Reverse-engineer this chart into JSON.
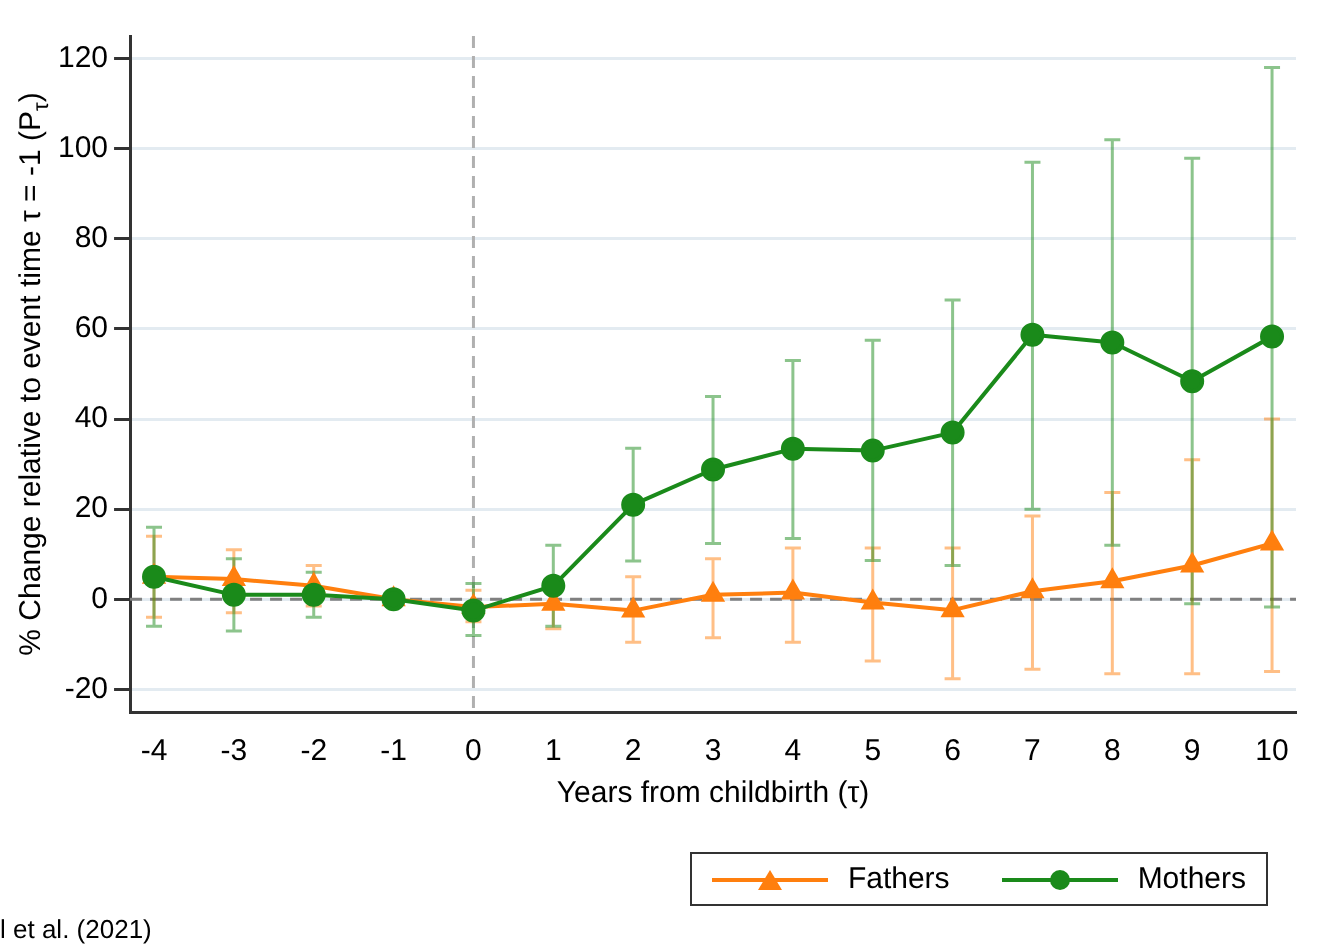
{
  "chart_data": {
    "type": "line",
    "xlabel": "Years from childbirth (τ)",
    "ylabel": "% Change relative to event time τ = -1 (P$_{τ}$)",
    "x": [
      -4,
      -3,
      -2,
      -1,
      0,
      1,
      2,
      3,
      4,
      5,
      6,
      7,
      8,
      9,
      10
    ],
    "xlim": [
      -4.3,
      10.3
    ],
    "xticks": [
      -4,
      -3,
      -2,
      -1,
      0,
      1,
      2,
      3,
      4,
      5,
      6,
      7,
      8,
      9,
      10
    ],
    "ylim": [
      -25,
      125
    ],
    "yticks": [
      -20,
      0,
      20,
      40,
      60,
      80,
      100,
      120
    ],
    "series": [
      {
        "name": "Fathers",
        "color": "#ff7f0e",
        "marker": "triangle",
        "values": [
          5,
          4.5,
          3,
          0,
          -1.7,
          -1,
          -2.5,
          1,
          1.5,
          -0.7,
          -2.4,
          1.8,
          4,
          7.5,
          12.4
        ],
        "errors": [
          [
            -4,
            14
          ],
          [
            -3,
            11
          ],
          [
            -1.5,
            7.5
          ],
          null,
          [
            -5,
            2
          ],
          [
            -6.5,
            4
          ],
          [
            -9.5,
            5
          ],
          [
            -8.5,
            9
          ],
          [
            -9.5,
            11.4
          ],
          [
            -13.7,
            11.4
          ],
          [
            -17.6,
            11.4
          ],
          [
            -15.5,
            18.5
          ],
          [
            -16.5,
            23.7
          ],
          [
            -16.5,
            31
          ],
          [
            -16,
            40
          ]
        ]
      },
      {
        "name": "Mothers",
        "color": "#1a8a1a",
        "marker": "circle",
        "values": [
          5,
          1,
          1,
          0,
          -2.5,
          3,
          21,
          28.8,
          33.4,
          33,
          37,
          58.7,
          57,
          48.4,
          58.3
        ],
        "errors": [
          [
            -6,
            16
          ],
          [
            -7,
            9
          ],
          [
            -4,
            6
          ],
          null,
          [
            -8,
            3.5
          ],
          [
            -6,
            12
          ],
          [
            8.5,
            33.5
          ],
          [
            12.4,
            45
          ],
          [
            13.5,
            53
          ],
          [
            8.6,
            57.5
          ],
          [
            7.5,
            66.4
          ],
          [
            20,
            97
          ],
          [
            12,
            102
          ],
          [
            -1,
            97.9
          ],
          [
            -1.7,
            118
          ]
        ]
      }
    ],
    "ref_lines": [
      {
        "axis": "y",
        "value": 0,
        "color": "#808080",
        "line_style": "dashed"
      },
      {
        "axis": "x",
        "value": 0,
        "color": "#b0b0b0",
        "line_style": "dashed"
      }
    ],
    "grid": "y",
    "legend": "bottom right",
    "line_style": "solid",
    "annotations": [
      "l et al. (2021)"
    ]
  }
}
